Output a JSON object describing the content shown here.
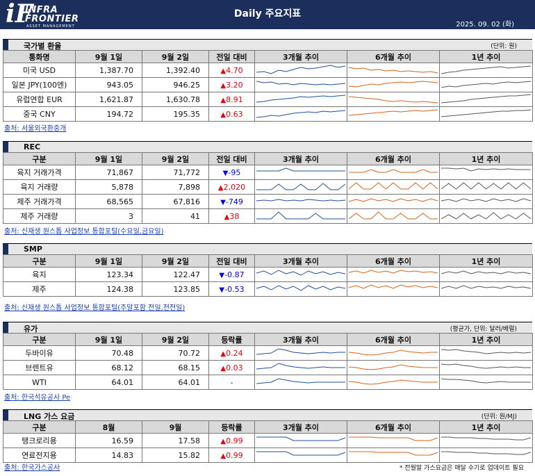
{
  "header": {
    "logo_mark": "iF",
    "logo_name_1": "INFRA",
    "logo_name_2": "FRONTIER",
    "logo_tagline": "ASSET MANAGEMENT",
    "title": "Daily 주요지표",
    "date": "2025. 09. 02 (화)",
    "bg_color": "#1c2e5c"
  },
  "colors": {
    "up": "#e8000b",
    "down": "#0000e0",
    "spark_3m": "#1f4e9c",
    "spark_6m": "#d5631a",
    "spark_1y": "#555555"
  },
  "sections": [
    {
      "title": "국가별 환율",
      "unit": "(단위: 원)",
      "headers": [
        "통화명",
        "9월 1일",
        "9월 2일",
        "전일 대비",
        "3개월 추이",
        "6개월 추이",
        "1년 추이"
      ],
      "rows": [
        {
          "name": "미국 USD",
          "v1": "1,387.70",
          "v2": "1,392.40",
          "dir": "up",
          "arrow": "▲",
          "chg": "4.70",
          "trend": [
            [
              5,
              6,
              3,
              8,
              6,
              9,
              12,
              10,
              11,
              13,
              15,
              12,
              14
            ],
            [
              12,
              10,
              11,
              8,
              9,
              7,
              8,
              6,
              7,
              6,
              5,
              6,
              4
            ],
            [
              3,
              5,
              6,
              8,
              9,
              10,
              11,
              12,
              13,
              11,
              12,
              13,
              14
            ]
          ]
        },
        {
          "name": "일본 JPY(100엔)",
          "v1": "943.05",
          "v2": "946.25",
          "dir": "up",
          "arrow": "▲",
          "chg": "3.20",
          "trend": [
            [
              13,
              11,
              12,
              9,
              10,
              8,
              10,
              9,
              8,
              9,
              8,
              9,
              10
            ],
            [
              6,
              5,
              7,
              9,
              8,
              10,
              11,
              12,
              11,
              12,
              13,
              12,
              11
            ],
            [
              4,
              6,
              5,
              7,
              8,
              9,
              10,
              9,
              11,
              12,
              11,
              12,
              13
            ]
          ]
        },
        {
          "name": "유럽연합 EUR",
          "v1": "1,621.87",
          "v2": "1,630.78",
          "dir": "up",
          "arrow": "▲",
          "chg": "8.91",
          "trend": [
            [
              4,
              5,
              7,
              8,
              9,
              10,
              12,
              11,
              12,
              13,
              12,
              13,
              14
            ],
            [
              12,
              11,
              10,
              9,
              8,
              6,
              5,
              6,
              5,
              4,
              5,
              4,
              3
            ],
            [
              3,
              4,
              5,
              6,
              8,
              9,
              10,
              11,
              12,
              13,
              13,
              14,
              15
            ]
          ]
        },
        {
          "name": "중국 CNY",
          "v1": "194.72",
          "v2": "195.35",
          "dir": "up",
          "arrow": "▲",
          "chg": "0.63",
          "trend": [
            [
              3,
              4,
              6,
              5,
              7,
              9,
              10,
              11,
              10,
              12,
              11,
              12,
              13
            ],
            [
              6,
              7,
              8,
              9,
              10,
              11,
              12,
              11,
              12,
              13,
              12,
              13,
              14
            ],
            [
              4,
              5,
              6,
              7,
              8,
              9,
              10,
              11,
              12,
              12,
              13,
              13,
              14
            ]
          ]
        }
      ],
      "source": "출처: 서울외국환중개"
    },
    {
      "title": "REC",
      "unit": "",
      "headers": [
        "구분",
        "9월 1일",
        "9월 2일",
        "전일 대비",
        "3개월 추이",
        "6개월 추이",
        "1년 추이"
      ],
      "rows": [
        {
          "name": "육지 거래가격",
          "v1": "71,867",
          "v2": "71,772",
          "dir": "down",
          "arrow": "▼",
          "chg": "-95",
          "trend": [
            [
              10,
              10,
              10,
              10,
              14,
              10,
              10,
              10,
              10,
              10,
              10,
              10,
              10
            ],
            [
              8,
              8,
              8,
              12,
              8,
              8,
              12,
              8,
              8,
              8,
              12,
              8,
              8
            ],
            [
              14,
              14,
              13,
              14,
              10,
              13,
              12,
              13,
              12,
              13,
              12,
              12,
              12
            ]
          ]
        },
        {
          "name": "육지 거래량",
          "v1": "5,878",
          "v2": "7,898",
          "dir": "up",
          "arrow": "▲",
          "chg": "2,020",
          "trend": [
            [
              4,
              4,
              4,
              12,
              4,
              4,
              12,
              4,
              4,
              13,
              4,
              4,
              12
            ],
            [
              5,
              14,
              5,
              5,
              14,
              5,
              14,
              5,
              5,
              14,
              5,
              14,
              5
            ],
            [
              5,
              13,
              5,
              14,
              5,
              14,
              5,
              13,
              5,
              14,
              5,
              14,
              5
            ]
          ]
        },
        {
          "name": "제주 거래가격",
          "v1": "68,565",
          "v2": "67,816",
          "dir": "down",
          "arrow": "▼",
          "chg": "-749",
          "trend": [
            [
              9,
              10,
              9,
              11,
              9,
              10,
              9,
              11,
              10,
              9,
              10,
              9,
              10
            ],
            [
              8,
              11,
              8,
              12,
              9,
              11,
              8,
              12,
              9,
              11,
              8,
              12,
              9
            ],
            [
              9,
              11,
              8,
              12,
              9,
              11,
              8,
              12,
              9,
              11,
              8,
              12,
              9
            ]
          ]
        },
        {
          "name": "제주 거래량",
          "v1": "3",
          "v2": "41",
          "dir": "up",
          "arrow": "▲",
          "chg": "38",
          "trend": [
            [
              4,
              4,
              4,
              14,
              4,
              4,
              4,
              4,
              12,
              4,
              4,
              4,
              4
            ],
            [
              4,
              12,
              4,
              4,
              14,
              4,
              4,
              12,
              4,
              4,
              12,
              4,
              4
            ],
            [
              4,
              10,
              4,
              12,
              4,
              10,
              4,
              13,
              4,
              10,
              4,
              12,
              4
            ]
          ]
        }
      ],
      "source": "출처: 신재생 원스톱 사업정보 통합포털(수요일,금요일)"
    },
    {
      "title": "SMP",
      "unit": "",
      "headers": [
        "구분",
        "9월 1일",
        "9월 2일",
        "전일 대비",
        "3개월 추이",
        "6개월 추이",
        "1년 추이"
      ],
      "rows": [
        {
          "name": "육지",
          "v1": "123.34",
          "v2": "122.47",
          "dir": "down",
          "arrow": "▼",
          "chg": "-0.87",
          "trend": [
            [
              10,
              13,
              8,
              14,
              9,
              12,
              7,
              13,
              9,
              12,
              8,
              11,
              9
            ],
            [
              11,
              13,
              10,
              14,
              11,
              13,
              10,
              14,
              12,
              13,
              11,
              12,
              10
            ],
            [
              9,
              12,
              10,
              13,
              9,
              12,
              10,
              11,
              9,
              12,
              10,
              11,
              9
            ]
          ]
        },
        {
          "name": "제주",
          "v1": "124.38",
          "v2": "123.85",
          "dir": "down",
          "arrow": "▼",
          "chg": "-0.53",
          "trend": [
            [
              9,
              12,
              7,
              13,
              8,
              12,
              6,
              13,
              8,
              12,
              7,
              11,
              9
            ],
            [
              10,
              13,
              9,
              14,
              10,
              13,
              9,
              14,
              11,
              13,
              10,
              12,
              10
            ],
            [
              9,
              12,
              9,
              13,
              9,
              12,
              10,
              11,
              9,
              12,
              10,
              11,
              9
            ]
          ]
        }
      ],
      "source": "출처: 신재생 원스톱 사업정보 통합포털(주말포함 전일,전전일)"
    },
    {
      "title": "유가",
      "unit": "(평균가, 단위: 달러/배럴)",
      "headers": [
        "구분",
        "9월 1일",
        "9월 2일",
        "등락률",
        "3개월 추이",
        "6개월 추이",
        "1년 추이"
      ],
      "rows": [
        {
          "name": "두바이유",
          "v1": "70.48",
          "v2": "70.72",
          "dir": "up",
          "arrow": "▲",
          "chg": "0.24",
          "trend": [
            [
              6,
              7,
              8,
              14,
              12,
              9,
              8,
              7,
              8,
              9,
              8,
              9,
              9
            ],
            [
              9,
              8,
              6,
              5,
              6,
              8,
              9,
              12,
              10,
              9,
              8,
              9,
              9
            ],
            [
              13,
              12,
              13,
              11,
              10,
              9,
              7,
              8,
              9,
              8,
              9,
              8,
              9
            ]
          ]
        },
        {
          "name": "브렌트유",
          "v1": "68.12",
          "v2": "68.15",
          "dir": "up",
          "arrow": "▲",
          "chg": "0.03",
          "trend": [
            [
              6,
              7,
              8,
              14,
              11,
              9,
              8,
              7,
              8,
              9,
              8,
              8,
              8
            ],
            [
              9,
              8,
              6,
              5,
              6,
              8,
              9,
              12,
              10,
              9,
              8,
              8,
              8
            ],
            [
              13,
              12,
              13,
              11,
              10,
              8,
              7,
              8,
              9,
              8,
              9,
              8,
              8
            ]
          ]
        },
        {
          "name": "WTI",
          "v1": "64.01",
          "v2": "64.01",
          "dir": "none",
          "arrow": "",
          "chg": "-",
          "trend": [
            [
              6,
              7,
              8,
              13,
              11,
              9,
              8,
              7,
              8,
              8,
              8,
              8,
              8
            ],
            [
              9,
              8,
              6,
              5,
              6,
              8,
              9,
              11,
              10,
              9,
              8,
              8,
              8
            ],
            [
              13,
              12,
              12,
              11,
              10,
              8,
              7,
              8,
              9,
              8,
              8,
              8,
              8
            ]
          ]
        }
      ],
      "source": "출처: 한국석유공사 Pe"
    },
    {
      "title": "LNG 가스 요금",
      "unit": "(단위: 원/MJ)",
      "headers": [
        "구분",
        "8월",
        "9월",
        "등락률",
        "3개월 추이",
        "6개월 추이",
        "1년 추이"
      ],
      "rows": [
        {
          "name": "탱크로리용",
          "v1": "16.59",
          "v2": "17.58",
          "dir": "up",
          "arrow": "▲",
          "chg": "0.99",
          "trend": [
            [
              13,
              13,
              13,
              13,
              13,
              8,
              8,
              8,
              8,
              8,
              8,
              8,
              12
            ],
            [
              13,
              13,
              13,
              13,
              12,
              12,
              12,
              12,
              12,
              8,
              8,
              8,
              12
            ],
            [
              13,
              13,
              12,
              12,
              12,
              11,
              11,
              10,
              10,
              10,
              9,
              9,
              12
            ]
          ]
        },
        {
          "name": "연료전지용",
          "v1": "14.83",
          "v2": "15.82",
          "dir": "up",
          "arrow": "▲",
          "chg": "0.99",
          "trend": [
            [
              13,
              13,
              13,
              13,
              13,
              8,
              8,
              8,
              8,
              8,
              8,
              8,
              12
            ],
            [
              13,
              13,
              13,
              13,
              12,
              12,
              12,
              12,
              12,
              8,
              8,
              8,
              12
            ],
            [
              13,
              13,
              12,
              12,
              12,
              11,
              11,
              10,
              10,
              10,
              9,
              9,
              12
            ]
          ]
        }
      ],
      "source": "출처: 한국가스공사",
      "footnote": "* 전월말 가스요금은 매달 수기로 업데이트 필요"
    }
  ]
}
